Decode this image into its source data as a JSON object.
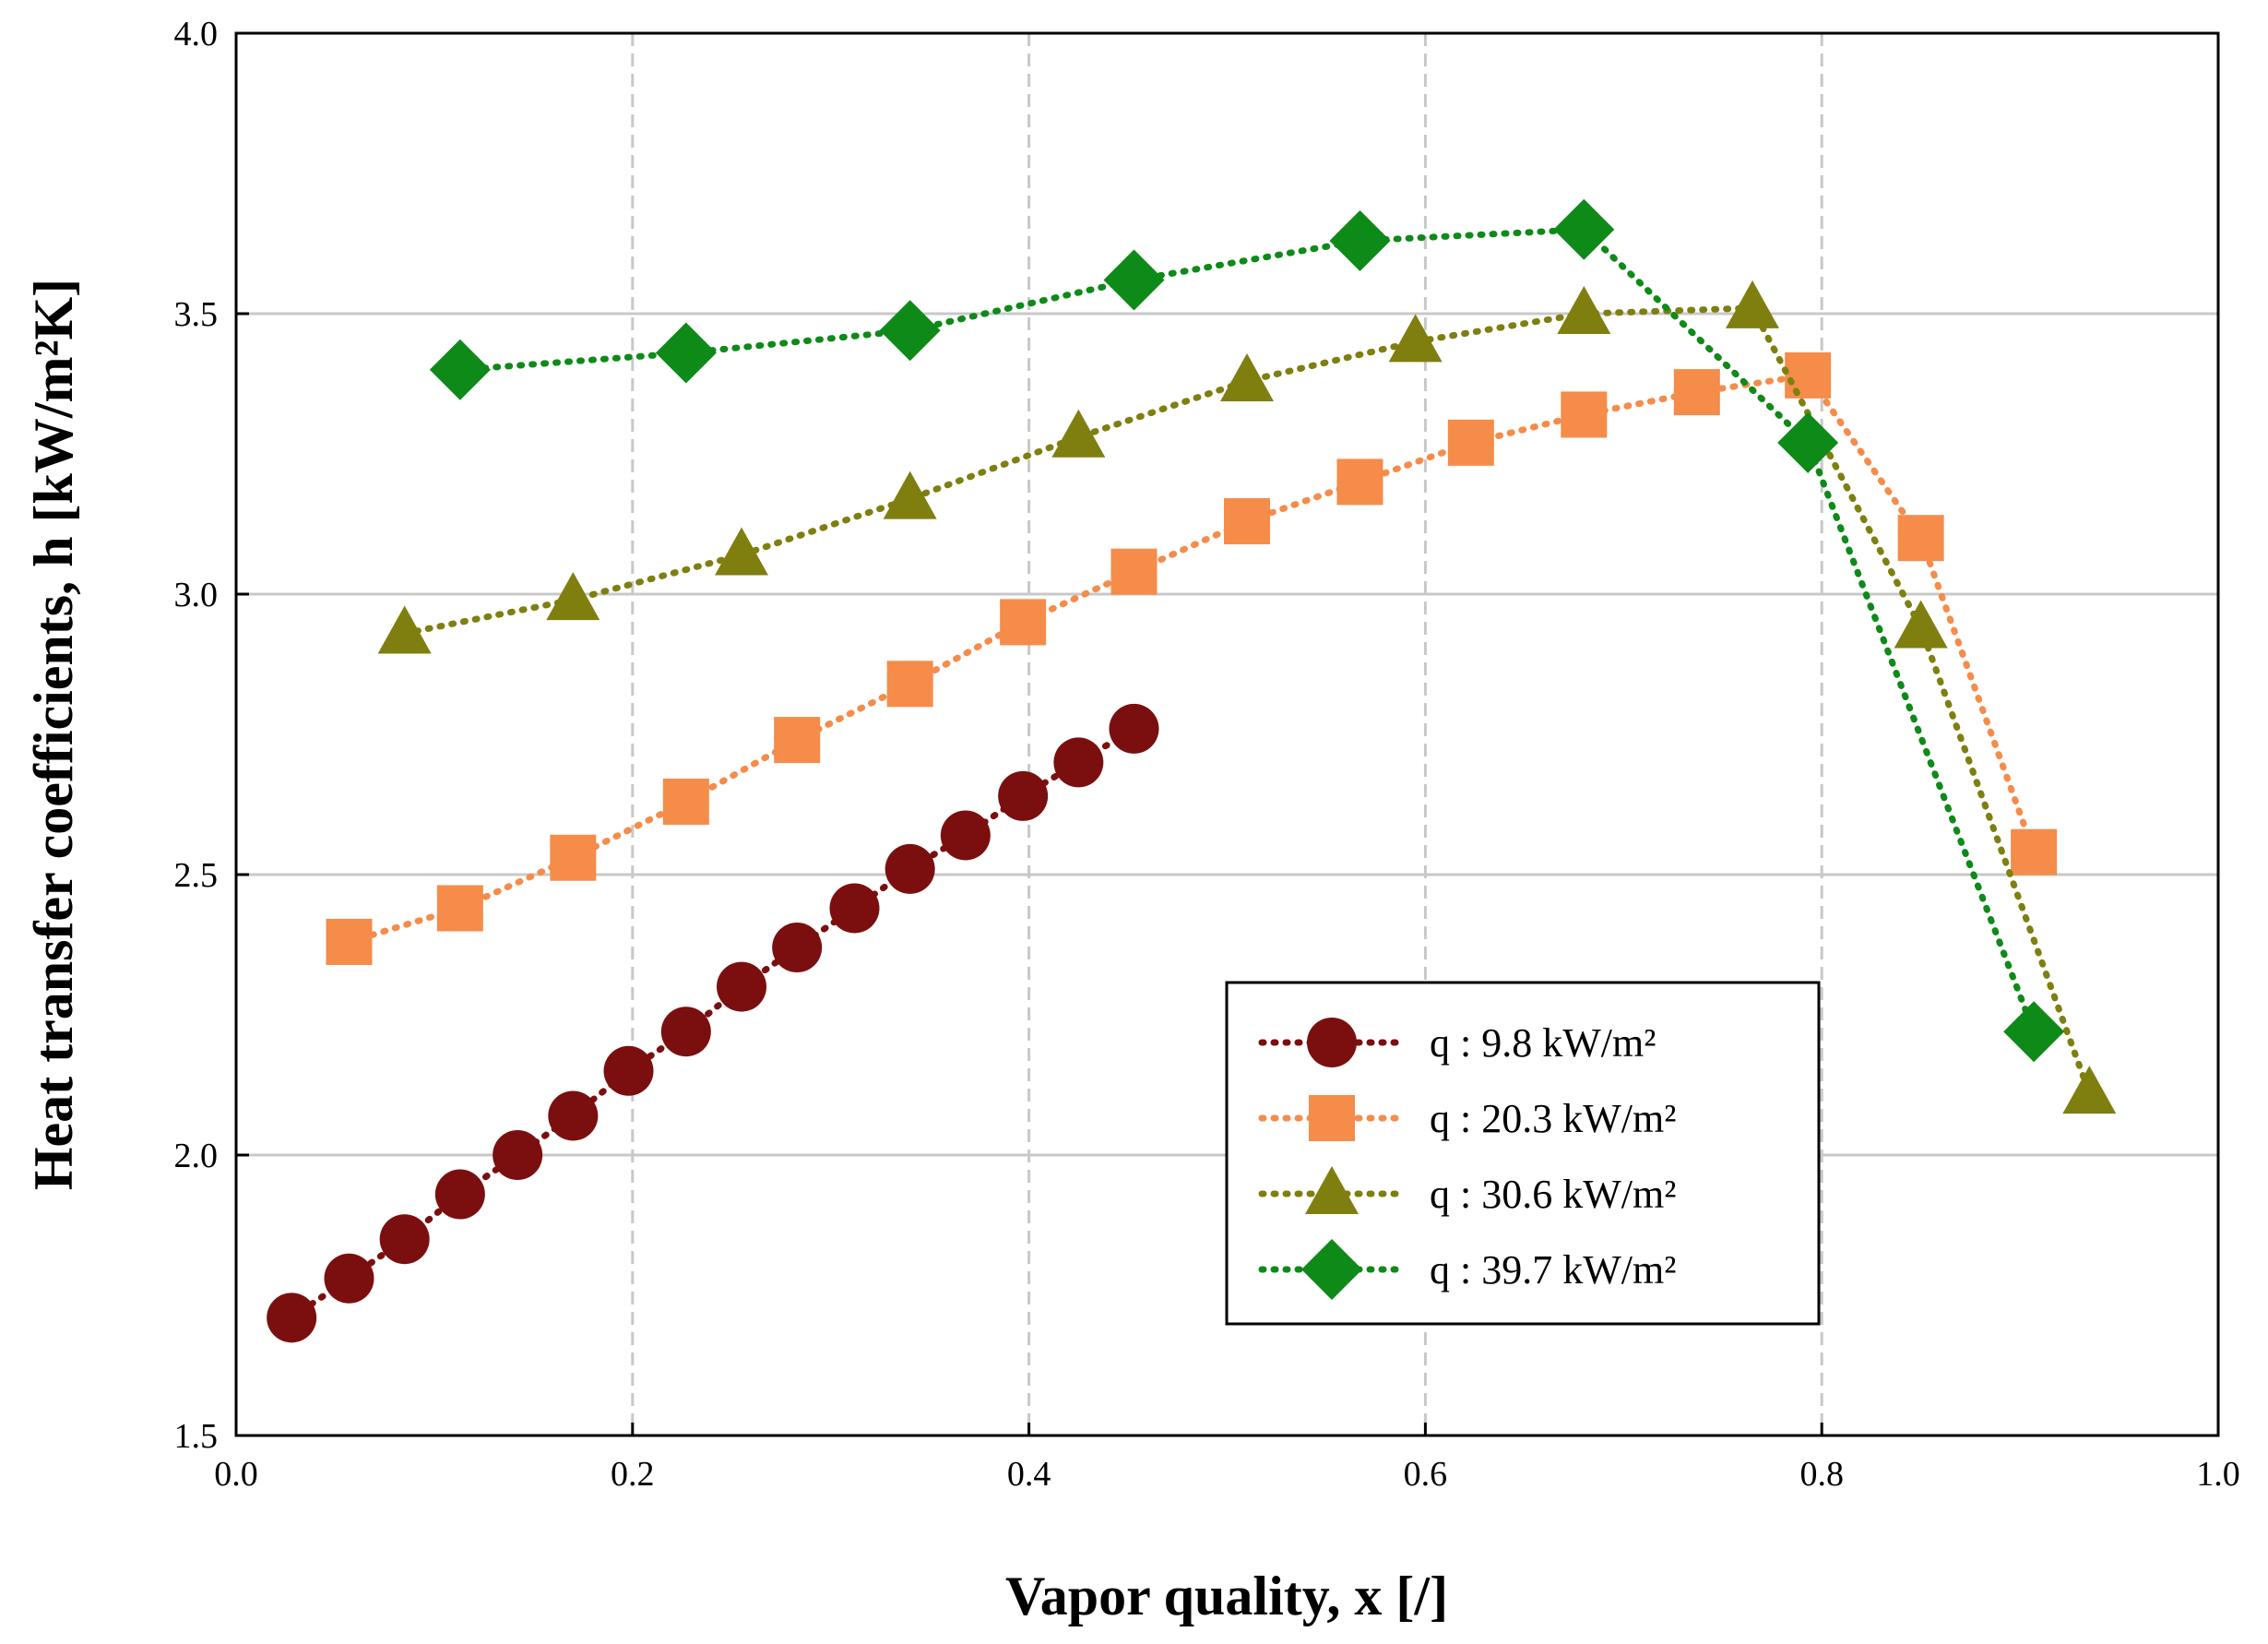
{
  "chart_data": {
    "type": "scatter",
    "xlabel": "Vapor quality, x [/]",
    "ylabel": "Heat transfer coefficients, h [kW/m²K]",
    "xlim": [
      0.0,
      1.0
    ],
    "ylim": [
      1.5,
      4.0
    ],
    "grid": true,
    "x_ticks": [
      "0.0",
      "0.2",
      "0.4",
      "0.6",
      "0.8",
      "1.0"
    ],
    "y_ticks": [
      "1.5",
      "2.0",
      "2.5",
      "3.0",
      "3.5",
      "4.0"
    ],
    "legend_position": "bottom-right",
    "series": [
      {
        "name": "q :   9.8 kW/m²",
        "marker": "circle",
        "color": "#7b0f0f",
        "x": [
          0.028,
          0.057,
          0.085,
          0.113,
          0.142,
          0.17,
          0.198,
          0.227,
          0.255,
          0.283,
          0.312,
          0.34,
          0.368,
          0.397,
          0.425,
          0.453
        ],
        "y": [
          1.71,
          1.78,
          1.85,
          1.93,
          2.0,
          2.07,
          2.15,
          2.22,
          2.3,
          2.37,
          2.44,
          2.51,
          2.57,
          2.64,
          2.7,
          2.76
        ]
      },
      {
        "name": "q : 20.3 kW/m²",
        "marker": "square",
        "color": "#f58c4a",
        "x": [
          0.057,
          0.113,
          0.17,
          0.227,
          0.283,
          0.34,
          0.397,
          0.453,
          0.51,
          0.567,
          0.623,
          0.68,
          0.737,
          0.793,
          0.85,
          0.907
        ],
        "y": [
          2.38,
          2.44,
          2.53,
          2.63,
          2.74,
          2.84,
          2.95,
          3.04,
          3.13,
          3.2,
          3.27,
          3.32,
          3.36,
          3.39,
          3.1,
          2.54
        ]
      },
      {
        "name": "q : 30.6 kW/m²",
        "marker": "triangle",
        "color": "#7f7f10",
        "x": [
          0.085,
          0.17,
          0.255,
          0.34,
          0.425,
          0.51,
          0.595,
          0.68,
          0.765,
          0.85,
          0.935
        ],
        "y": [
          2.93,
          2.99,
          3.07,
          3.17,
          3.28,
          3.38,
          3.45,
          3.5,
          3.51,
          2.94,
          2.11
        ]
      },
      {
        "name": "q : 39.7 kW/m²",
        "marker": "diamond",
        "color": "#0e8a18",
        "x": [
          0.113,
          0.227,
          0.34,
          0.453,
          0.567,
          0.68,
          0.793,
          0.907
        ],
        "y": [
          3.4,
          3.43,
          3.47,
          3.56,
          3.63,
          3.65,
          3.27,
          2.22
        ]
      }
    ]
  }
}
